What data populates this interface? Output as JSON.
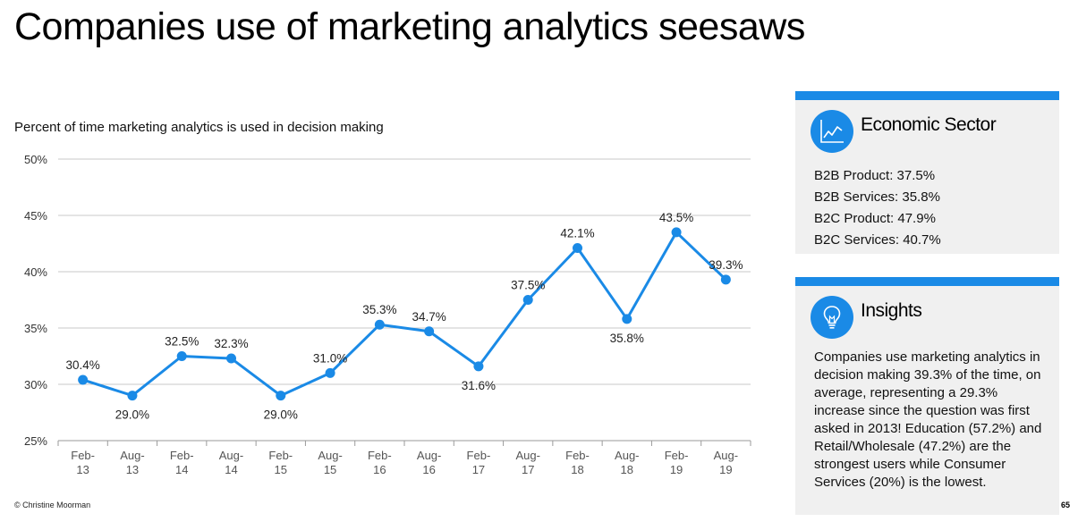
{
  "title": "Companies use of marketing analytics seesaws",
  "footer": {
    "credit": "© Christine Moorman",
    "page_number": "65"
  },
  "chart_data": {
    "type": "line",
    "title": "",
    "subtitle": "Percent of time marketing analytics is used in decision making",
    "xlabel": "",
    "ylabel": "",
    "ylim": [
      25,
      50
    ],
    "yticks": [
      "25%",
      "30%",
      "35%",
      "40%",
      "45%",
      "50%"
    ],
    "grid": true,
    "categories": [
      [
        "Feb-",
        "13"
      ],
      [
        "Aug-",
        "13"
      ],
      [
        "Feb-",
        "14"
      ],
      [
        "Aug-",
        "14"
      ],
      [
        "Feb-",
        "15"
      ],
      [
        "Aug-",
        "15"
      ],
      [
        "Feb-",
        "16"
      ],
      [
        "Aug-",
        "16"
      ],
      [
        "Feb-",
        "17"
      ],
      [
        "Aug-",
        "17"
      ],
      [
        "Feb-",
        "18"
      ],
      [
        "Aug-",
        "18"
      ],
      [
        "Feb-",
        "19"
      ],
      [
        "Aug-",
        "19"
      ]
    ],
    "values": [
      30.4,
      29.0,
      32.5,
      32.3,
      29.0,
      31.0,
      35.3,
      34.7,
      31.6,
      37.5,
      42.1,
      35.8,
      43.5,
      39.3
    ],
    "data_labels": [
      "30.4%",
      "29.0%",
      "32.5%",
      "32.3%",
      "29.0%",
      "31.0%",
      "35.3%",
      "34.7%",
      "31.6%",
      "37.5%",
      "42.1%",
      "35.8%",
      "43.5%",
      "39.3%"
    ],
    "label_positions": [
      "above",
      "below",
      "above",
      "above",
      "below",
      "above",
      "above",
      "above",
      "below",
      "above",
      "above",
      "below",
      "above",
      "above"
    ],
    "color": "#1a8ae6"
  },
  "panels": {
    "sector": {
      "heading": "Economic Sector",
      "icon": "line-chart-icon",
      "items": [
        "B2B Product: 37.5%",
        "B2B Services: 35.8%",
        "B2C Product: 47.9%",
        "B2C Services: 40.7%"
      ]
    },
    "insights": {
      "heading": "Insights",
      "icon": "lightbulb-icon",
      "text": "Companies use marketing analytics in decision making 39.3% of the time, on average, representing a 29.3% increase since the question was first asked in 2013! Education (57.2%) and Retail/Wholesale (47.2%) are the strongest users while Consumer Services (20%) is the lowest."
    }
  },
  "colors": {
    "accent": "#1a8ae6",
    "panel_background": "#f0f0f0",
    "grid": "#c8c8c8"
  }
}
